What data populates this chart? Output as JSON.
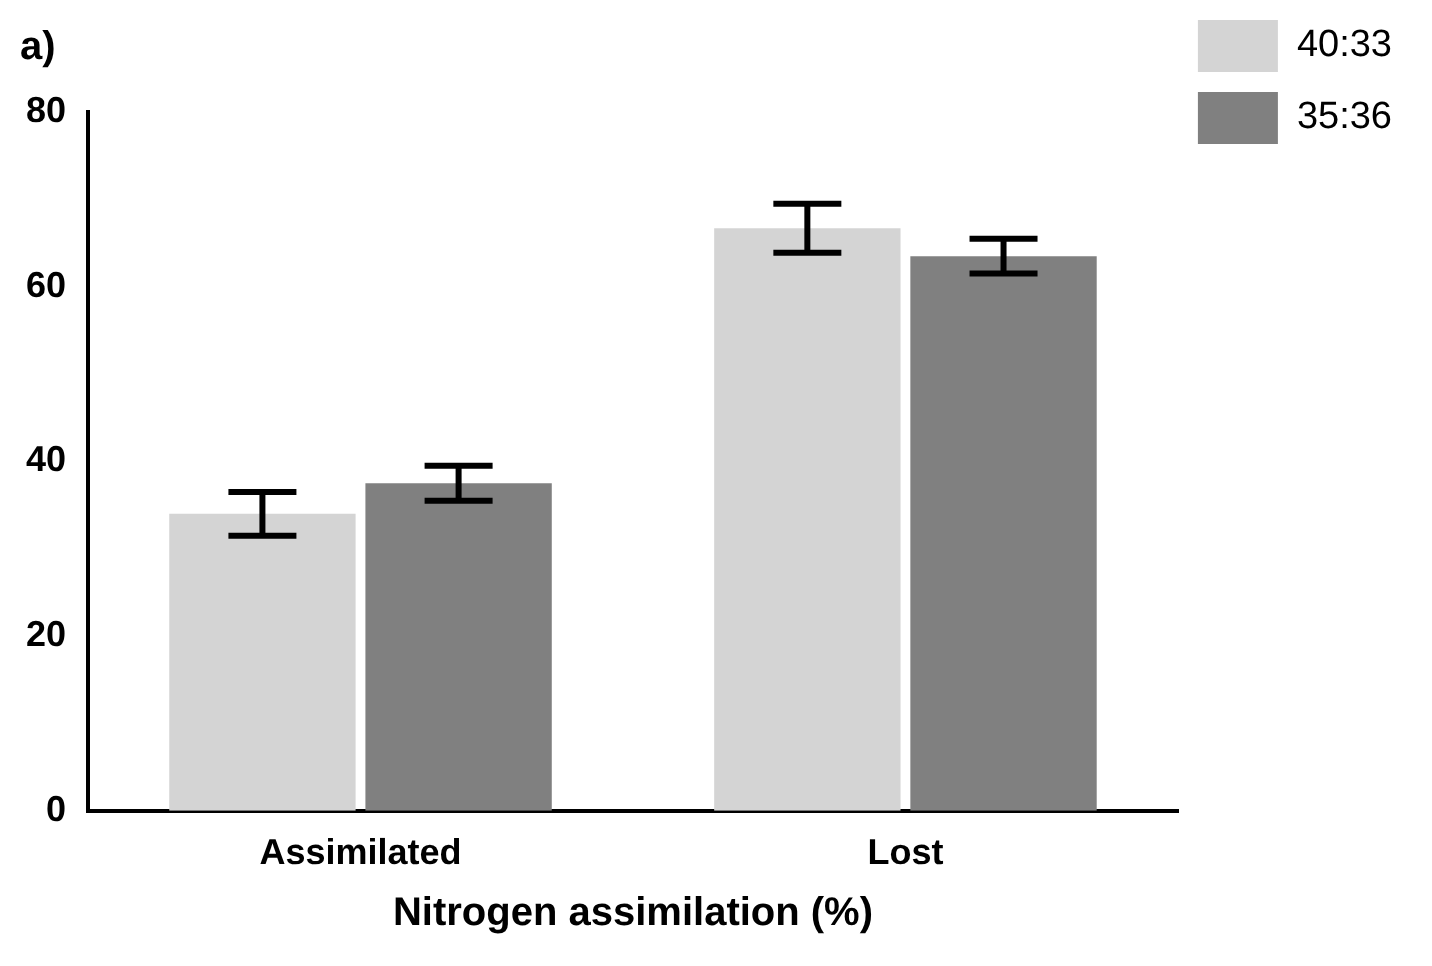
{
  "chart_data": {
    "type": "bar",
    "title": "a)",
    "xlabel": "Nitrogen assimilation (%)",
    "categories": [
      "Assimilated",
      "Lost"
    ],
    "series": [
      {
        "name": "40:33",
        "color": "#d4d4d4",
        "values": [
          34,
          66.7
        ],
        "errors": [
          2.5,
          2.8
        ]
      },
      {
        "name": "35:36",
        "color": "#808080",
        "values": [
          37.5,
          63.5
        ],
        "errors": [
          2,
          2
        ]
      }
    ],
    "ylim": [
      0,
      80
    ],
    "yticks": [
      0,
      20,
      40,
      60,
      80
    ],
    "grid": false,
    "legend": "top right"
  }
}
